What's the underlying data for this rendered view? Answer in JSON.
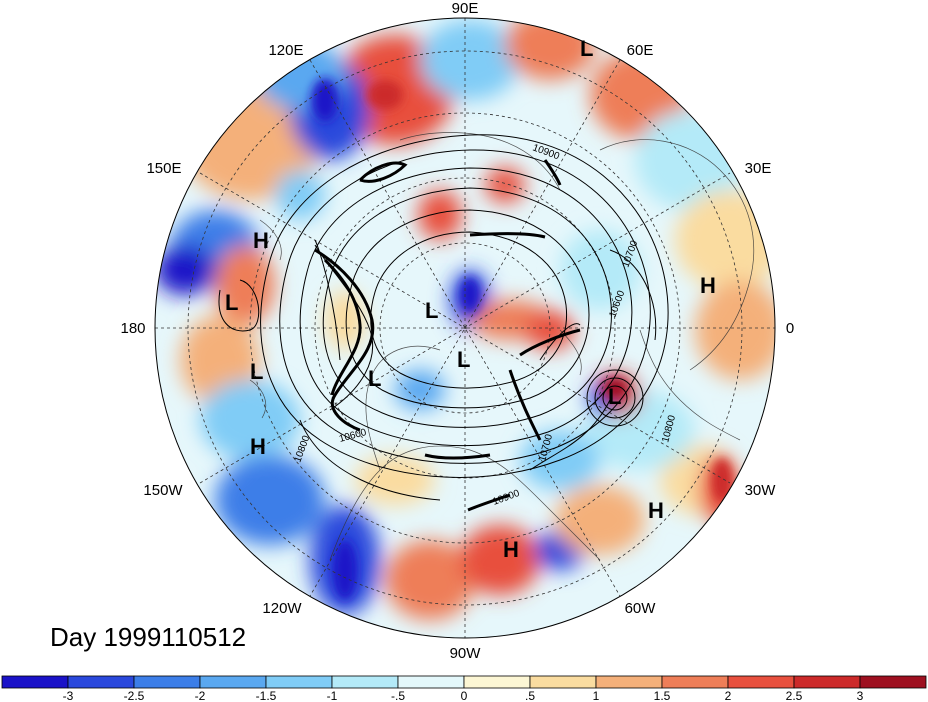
{
  "title": "Day 1999110512",
  "longitude_labels": {
    "e90": "90E",
    "e60": "60E",
    "e120": "120E",
    "e150": "150E",
    "e30": "30E",
    "deg180": "180",
    "deg0": "0",
    "w150": "150W",
    "w30": "30W",
    "w120": "120W",
    "w60": "60W",
    "w90": "90W"
  },
  "pressure_centers": [
    {
      "letter": "L"
    },
    {
      "letter": "H"
    },
    {
      "letter": "L"
    },
    {
      "letter": "H"
    },
    {
      "letter": "L"
    },
    {
      "letter": "L"
    },
    {
      "letter": "L"
    },
    {
      "letter": "L"
    },
    {
      "letter": "H"
    },
    {
      "letter": "L"
    },
    {
      "letter": "H"
    },
    {
      "letter": "H"
    }
  ],
  "contour_labels": [
    "10900",
    "10700",
    "10600",
    "10800",
    "10700",
    "10600",
    "10800",
    "10900"
  ],
  "colorbar": {
    "colors": [
      "#1a12c8",
      "#2a48dc",
      "#3c7ee8",
      "#5aa8f0",
      "#80ccf6",
      "#b4eaf8",
      "#e4f8fb",
      "#fcf6d4",
      "#fadca0",
      "#f4b07a",
      "#ee7e58",
      "#e8503e",
      "#cc2a2a",
      "#9e1020"
    ],
    "labels": [
      "-3",
      "-2.5",
      "-2",
      "-1.5",
      "-1",
      "-.5",
      "0",
      ".5",
      "1",
      "1.5",
      "2",
      "2.5",
      "3"
    ]
  }
}
